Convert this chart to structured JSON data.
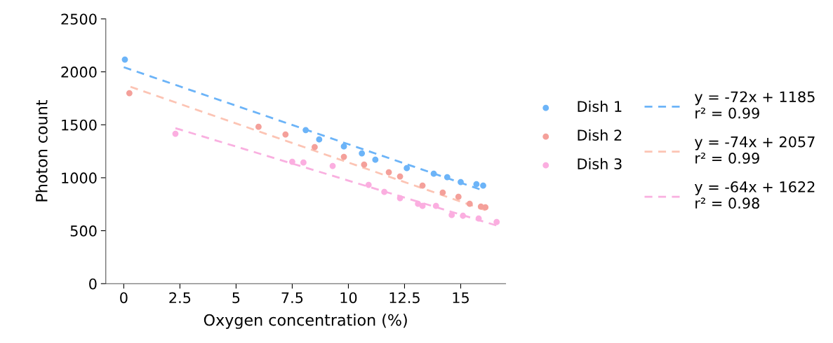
{
  "chart_data": {
    "type": "scatter",
    "xlabel": "Oxygen concentration (%)",
    "ylabel": "Photon count",
    "xlim": [
      -0.8,
      17.0
    ],
    "xticks": [
      0,
      2.5,
      5,
      7.5,
      10,
      12.5,
      15
    ],
    "ylim": [
      0,
      2500
    ],
    "yticks": [
      0,
      500,
      1000,
      1500,
      2000,
      2500
    ],
    "grid": false,
    "legend": "right",
    "marker": "circle",
    "series": [
      {
        "name": "Dish 1",
        "color": "#6cb4f8",
        "x": [
          0.05,
          8.1,
          8.7,
          9.8,
          10.6,
          11.2,
          12.6,
          13.8,
          14.4,
          15.0,
          15.7,
          16.0
        ],
        "values": [
          2116,
          1450,
          1362,
          1296,
          1230,
          1170,
          1091,
          1038,
          1005,
          959,
          939,
          926
        ]
      },
      {
        "name": "Dish 2",
        "color": "#f4a09a",
        "x": [
          0.25,
          6.0,
          7.2,
          8.5,
          9.8,
          10.7,
          11.8,
          12.3,
          13.3,
          14.2,
          14.9,
          15.4,
          15.9,
          16.1
        ],
        "values": [
          1799,
          1481,
          1409,
          1290,
          1197,
          1124,
          1052,
          1012,
          926,
          860,
          820,
          754,
          728,
          721
        ]
      },
      {
        "name": "Dish 3",
        "color": "#fbaee0",
        "x": [
          2.3,
          7.5,
          8.0,
          9.3,
          10.9,
          11.6,
          12.3,
          13.1,
          13.3,
          13.9,
          14.6,
          15.1,
          15.8,
          16.6
        ],
        "values": [
          1415,
          1151,
          1144,
          1111,
          933,
          866,
          807,
          754,
          734,
          734,
          648,
          641,
          615,
          582
        ]
      },
      {
        "name": "y = -72x + 1185\nr² = 0.99",
        "type": "line",
        "line_style": "dashed",
        "marker": "none",
        "color": "#6cb4f8",
        "x": [
          0.0,
          16.0
        ],
        "values": [
          2044,
          880
        ]
      },
      {
        "name": "y = -74x + 2057\nr² = 0.99",
        "type": "line",
        "line_style": "dashed",
        "marker": "none",
        "color": "#fcc4b4",
        "x": [
          0.3,
          16.1
        ],
        "values": [
          1859,
          694
        ]
      },
      {
        "name": "y = -64x + 1622\nr² = 0.98",
        "type": "line",
        "line_style": "dashed",
        "marker": "none",
        "color": "#f9b0e0",
        "x": [
          2.3,
          16.6
        ],
        "values": [
          1468,
          549
        ]
      }
    ]
  }
}
